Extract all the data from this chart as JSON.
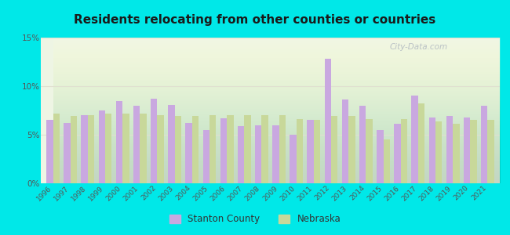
{
  "title": "Residents relocating from other counties or countries",
  "years": [
    1996,
    1997,
    1998,
    1999,
    2000,
    2001,
    2002,
    2003,
    2004,
    2005,
    2006,
    2007,
    2008,
    2009,
    2010,
    2011,
    2012,
    2013,
    2014,
    2015,
    2016,
    2017,
    2018,
    2019,
    2020,
    2021
  ],
  "stanton_county": [
    6.5,
    6.2,
    7.0,
    7.5,
    8.5,
    8.0,
    8.7,
    8.1,
    6.2,
    5.5,
    6.7,
    5.9,
    6.0,
    6.0,
    5.0,
    6.5,
    12.8,
    8.6,
    8.0,
    5.5,
    6.1,
    9.0,
    6.8,
    6.9,
    6.8,
    8.0
  ],
  "nebraska": [
    7.2,
    6.9,
    7.0,
    7.2,
    7.2,
    7.2,
    7.0,
    6.9,
    6.9,
    7.0,
    7.0,
    7.0,
    7.0,
    7.0,
    6.6,
    6.5,
    6.9,
    6.9,
    6.6,
    4.5,
    6.6,
    8.2,
    6.4,
    6.1,
    6.5,
    6.5
  ],
  "stanton_color": "#c9a8e0",
  "nebraska_color": "#c8d89a",
  "bg_outer": "#00e8e8",
  "title_color": "#1a1a1a",
  "grid_color": "#e0e0d0",
  "ylim": [
    0,
    15
  ],
  "yticks": [
    0,
    5,
    10,
    15
  ],
  "ytick_labels": [
    "0%",
    "5%",
    "10%",
    "15%"
  ],
  "bar_width": 0.38,
  "figsize": [
    6.5,
    3.0
  ],
  "dpi": 100
}
